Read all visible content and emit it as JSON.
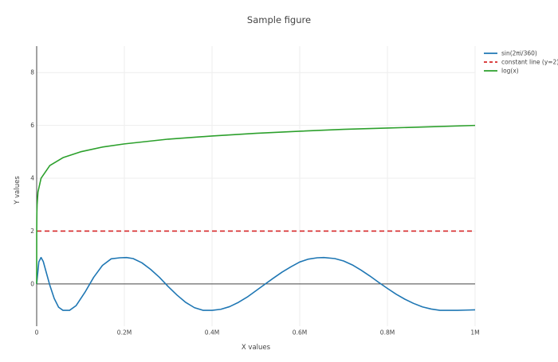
{
  "chart_data": {
    "type": "line",
    "title": "Sample figure",
    "xlabel": "X values",
    "ylabel": "Y values",
    "xlim": [
      0,
      1000000
    ],
    "ylim": [
      -1.6,
      9.0
    ],
    "x_ticks": [
      {
        "value": 0,
        "label": "0"
      },
      {
        "value": 200000,
        "label": "0.2M"
      },
      {
        "value": 400000,
        "label": "0.4M"
      },
      {
        "value": 600000,
        "label": "0.6M"
      },
      {
        "value": 800000,
        "label": "0.8M"
      },
      {
        "value": 1000000,
        "label": "1M"
      }
    ],
    "y_ticks": [
      {
        "value": 0,
        "label": "0"
      },
      {
        "value": 2,
        "label": "2"
      },
      {
        "value": 4,
        "label": "4"
      },
      {
        "value": 6,
        "label": "6"
      },
      {
        "value": 8,
        "label": "8"
      }
    ],
    "grid": true,
    "legend_position": "top-right",
    "series": [
      {
        "name": "sin(2πi/360)",
        "color": "#1f77b4",
        "dash": "solid",
        "x": [
          0,
          5000,
          10000,
          15000,
          20000,
          30000,
          40000,
          50000,
          60000,
          75000,
          90000,
          110000,
          130000,
          150000,
          170000,
          190000,
          205000,
          220000,
          240000,
          260000,
          280000,
          300000,
          320000,
          340000,
          360000,
          380000,
          400000,
          420000,
          440000,
          460000,
          480000,
          500000,
          520000,
          540000,
          560000,
          580000,
          600000,
          620000,
          640000,
          655000,
          680000,
          700000,
          720000,
          740000,
          760000,
          780000,
          800000,
          820000,
          840000,
          860000,
          880000,
          900000,
          920000,
          940000,
          960000,
          980000,
          1000000
        ],
        "y": [
          0,
          0.84,
          1.0,
          0.85,
          0.55,
          -0.05,
          -0.55,
          -0.88,
          -1.0,
          -1.0,
          -0.82,
          -0.32,
          0.25,
          0.7,
          0.95,
          0.99,
          1.0,
          0.96,
          0.8,
          0.55,
          0.25,
          -0.1,
          -0.42,
          -0.7,
          -0.9,
          -1.0,
          -1.0,
          -0.96,
          -0.86,
          -0.7,
          -0.5,
          -0.26,
          -0.02,
          0.22,
          0.45,
          0.65,
          0.83,
          0.94,
          0.99,
          1.0,
          0.96,
          0.87,
          0.72,
          0.52,
          0.3,
          0.06,
          -0.17,
          -0.39,
          -0.58,
          -0.74,
          -0.87,
          -0.95,
          -1.0,
          -1.0,
          -1.0,
          -0.99,
          -0.98
        ]
      },
      {
        "name": "constant line (y=2)",
        "color": "#d62728",
        "dash": "dash",
        "x": [
          0,
          1000000
        ],
        "y": [
          2,
          2
        ]
      },
      {
        "name": "log(x)",
        "color": "#2ca02c",
        "dash": "solid",
        "x": [
          1,
          100,
          500,
          1000,
          3000,
          10000,
          30000,
          60000,
          100000,
          150000,
          200000,
          300000,
          400000,
          500000,
          600000,
          700000,
          800000,
          900000,
          1000000
        ],
        "y": [
          0,
          2.0,
          2.7,
          3.0,
          3.48,
          4.0,
          4.48,
          4.78,
          5.0,
          5.18,
          5.3,
          5.48,
          5.6,
          5.7,
          5.78,
          5.85,
          5.9,
          5.95,
          6.0
        ]
      }
    ]
  }
}
